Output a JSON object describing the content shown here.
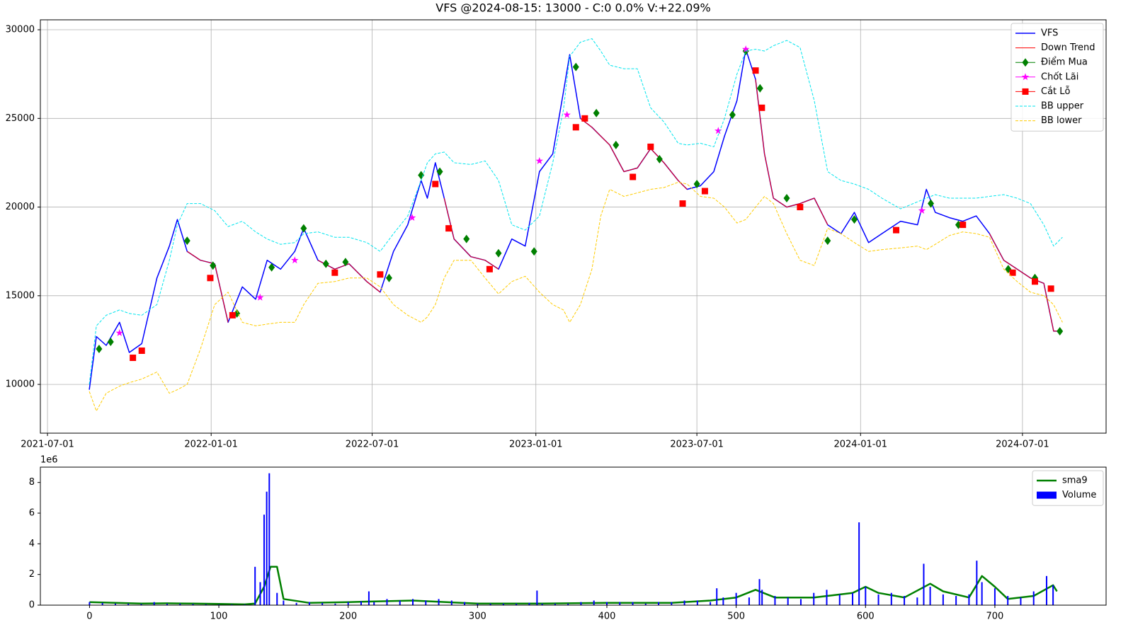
{
  "chart_data": [
    {
      "type": "line",
      "title": "VFS @2024-08-15: 13000 - C:0 0.0% V:+22.09%",
      "x": [
        "2021-08-17",
        "2021-08-25",
        "2021-09-05",
        "2021-09-20",
        "2021-10-01",
        "2021-10-15",
        "2021-11-01",
        "2021-11-15",
        "2021-11-24",
        "2021-12-05",
        "2021-12-20",
        "2022-01-05",
        "2022-01-20",
        "2022-02-05",
        "2022-02-20",
        "2022-03-05",
        "2022-03-20",
        "2022-04-05",
        "2022-04-15",
        "2022-05-01",
        "2022-05-20",
        "2022-06-05",
        "2022-06-25",
        "2022-07-10",
        "2022-07-25",
        "2022-08-10",
        "2022-08-25",
        "2022-09-01",
        "2022-09-10",
        "2022-09-20",
        "2022-10-01",
        "2022-10-20",
        "2022-11-05",
        "2022-11-20",
        "2022-12-05",
        "2022-12-20",
        "2023-01-05",
        "2023-01-20",
        "2023-02-01",
        "2023-02-08",
        "2023-02-20",
        "2023-03-05",
        "2023-03-15",
        "2023-03-25",
        "2023-04-10",
        "2023-04-25",
        "2023-05-10",
        "2023-05-25",
        "2023-06-10",
        "2023-06-20",
        "2023-07-05",
        "2023-07-20",
        "2023-08-01",
        "2023-08-15",
        "2023-08-25",
        "2023-09-05",
        "2023-09-15",
        "2023-09-25",
        "2023-10-10",
        "2023-10-25",
        "2023-11-10",
        "2023-11-25",
        "2023-12-10",
        "2023-12-25",
        "2024-01-10",
        "2024-01-25",
        "2024-02-15",
        "2024-03-05",
        "2024-03-15",
        "2024-03-25",
        "2024-04-10",
        "2024-04-25",
        "2024-05-10",
        "2024-05-25",
        "2024-06-10",
        "2024-06-25",
        "2024-07-10",
        "2024-07-25",
        "2024-08-05",
        "2024-08-15"
      ],
      "series": [
        {
          "name": "VFS",
          "kind": "line",
          "color": "#0000ff",
          "width": 1.5,
          "values": [
            9700,
            12700,
            12200,
            13500,
            11800,
            12300,
            16000,
            17800,
            19300,
            17500,
            17000,
            16800,
            13500,
            15500,
            14800,
            17000,
            16500,
            17500,
            18800,
            17000,
            16500,
            16800,
            15800,
            15200,
            17500,
            19000,
            21500,
            20500,
            22500,
            20500,
            18200,
            17200,
            17000,
            16500,
            18200,
            17800,
            22000,
            23000,
            26500,
            28600,
            25000,
            24500,
            24000,
            23500,
            22000,
            22200,
            23300,
            22500,
            21500,
            21000,
            21200,
            22000,
            24000,
            26000,
            28900,
            27200,
            23000,
            20500,
            20000,
            20200,
            20500,
            19000,
            18500,
            19700,
            18000,
            18500,
            19200,
            19000,
            21000,
            19700,
            19400,
            19200,
            19500,
            18500,
            17000,
            16500,
            16000,
            15700,
            13000,
            13000
          ]
        },
        {
          "name": "Down Trend",
          "kind": "line",
          "color": "#ff0000",
          "width": 1,
          "values": [
            null,
            null,
            null,
            null,
            null,
            null,
            null,
            null,
            null,
            17500,
            17000,
            16800,
            13500,
            null,
            null,
            null,
            null,
            null,
            null,
            17000,
            16500,
            16800,
            15800,
            15200,
            null,
            null,
            null,
            null,
            null,
            20500,
            18200,
            17200,
            17000,
            16500,
            null,
            null,
            null,
            null,
            null,
            null,
            25000,
            24500,
            24000,
            23500,
            22000,
            22200,
            23300,
            22500,
            21500,
            21000,
            null,
            null,
            null,
            null,
            null,
            27200,
            23000,
            20500,
            20000,
            20200,
            20500,
            19000,
            null,
            null,
            null,
            null,
            null,
            null,
            null,
            null,
            null,
            null,
            null,
            18500,
            17000,
            16500,
            16000,
            15700,
            13000,
            13000
          ]
        },
        {
          "name": "Điểm Mua",
          "kind": "scatter",
          "marker": "diamond",
          "color": "#008000",
          "x": [
            "2021-08-28",
            "2021-09-10",
            "2021-12-05",
            "2022-01-03",
            "2022-01-30",
            "2022-03-10",
            "2022-04-15",
            "2022-05-10",
            "2022-06-01",
            "2022-07-20",
            "2022-08-25",
            "2022-09-15",
            "2022-10-15",
            "2022-11-20",
            "2022-12-30",
            "2023-02-15",
            "2023-03-10",
            "2023-04-01",
            "2023-05-20",
            "2023-07-01",
            "2023-08-10",
            "2023-08-25",
            "2023-09-10",
            "2023-10-10",
            "2023-11-25",
            "2023-12-25",
            "2024-03-20",
            "2024-04-20",
            "2024-06-15",
            "2024-07-15",
            "2024-08-12"
          ],
          "values": [
            12000,
            12400,
            18100,
            16700,
            14000,
            16600,
            18800,
            16800,
            16900,
            16000,
            21800,
            22000,
            18200,
            17400,
            17500,
            27900,
            25300,
            23500,
            22700,
            21300,
            25200,
            28800,
            26700,
            20500,
            18100,
            19300,
            20200,
            19000,
            16500,
            16000,
            13000
          ]
        },
        {
          "name": "Chốt Lãi",
          "kind": "scatter",
          "marker": "star",
          "color": "#ff00ff",
          "x": [
            "2021-09-20",
            "2022-02-25",
            "2022-04-05",
            "2022-08-15",
            "2023-01-05",
            "2023-02-05",
            "2023-07-25",
            "2023-08-25",
            "2024-03-10"
          ],
          "values": [
            12900,
            14900,
            17000,
            19400,
            22600,
            25200,
            24300,
            28900,
            19800
          ]
        },
        {
          "name": "Cắt Lỗ",
          "kind": "scatter",
          "marker": "square",
          "color": "#ff0000",
          "x": [
            "2021-10-05",
            "2021-10-15",
            "2021-12-31",
            "2022-01-25",
            "2022-05-20",
            "2022-07-10",
            "2022-09-10",
            "2022-09-25",
            "2022-11-10",
            "2023-02-15",
            "2023-02-25",
            "2023-04-20",
            "2023-05-10",
            "2023-06-15",
            "2023-07-10",
            "2023-09-05",
            "2023-09-12",
            "2023-10-25",
            "2024-02-10",
            "2024-04-25",
            "2024-06-20",
            "2024-07-15",
            "2024-08-02"
          ],
          "values": [
            11500,
            11900,
            16000,
            13900,
            16300,
            16200,
            21300,
            18800,
            16500,
            24500,
            25000,
            21700,
            23400,
            20200,
            20900,
            27700,
            25600,
            20000,
            18700,
            19000,
            16300,
            15800,
            15400
          ]
        },
        {
          "name": "BB upper",
          "kind": "line",
          "dash": true,
          "color": "#00e5ee",
          "width": 1,
          "values": [
            10000,
            13300,
            13900,
            14200,
            14000,
            13900,
            14500,
            17000,
            19000,
            20200,
            20200,
            19800,
            18900,
            19200,
            18600,
            18200,
            17900,
            18000,
            18500,
            18600,
            18300,
            18300,
            18000,
            17500,
            18500,
            19500,
            21500,
            22500,
            23000,
            23100,
            22500,
            22400,
            22600,
            21500,
            19000,
            18700,
            19500,
            22500,
            25500,
            28500,
            29300,
            29500,
            28800,
            28000,
            27800,
            27800,
            25600,
            24800,
            23600,
            23500,
            23600,
            23400,
            25000,
            27500,
            28800,
            28900,
            28800,
            29100,
            29400,
            29000,
            26000,
            22000,
            21500,
            21300,
            21000,
            20500,
            19900,
            20300,
            20500,
            20700,
            20500,
            20500,
            20500,
            20600,
            20700,
            20500,
            20200,
            19000,
            17800,
            18300
          ]
        },
        {
          "name": "BB lower",
          "kind": "line",
          "dash": true,
          "color": "#ffcc00",
          "width": 1,
          "values": [
            9600,
            8500,
            9500,
            9900,
            10100,
            10300,
            10700,
            9500,
            9700,
            10000,
            12000,
            14500,
            15200,
            13500,
            13300,
            13400,
            13500,
            13500,
            14500,
            15700,
            15800,
            16000,
            16000,
            15500,
            14500,
            13900,
            13500,
            13800,
            14500,
            16000,
            17000,
            17000,
            16000,
            15100,
            15800,
            16100,
            15200,
            14500,
            14200,
            13500,
            14500,
            16500,
            19500,
            21000,
            20600,
            20800,
            21000,
            21100,
            21400,
            21300,
            20600,
            20500,
            20000,
            19100,
            19300,
            20000,
            20600,
            20200,
            18500,
            17000,
            16700,
            18800,
            18500,
            18000,
            17500,
            17600,
            17700,
            17800,
            17600,
            17900,
            18400,
            18600,
            18500,
            18300,
            16500,
            15800,
            15200,
            15000,
            14500,
            13500
          ]
        }
      ],
      "xlim": [
        "2021-06-23",
        "2024-10-03"
      ],
      "xticks": [
        "2021-07-01",
        "2022-01-01",
        "2022-07-01",
        "2023-01-01",
        "2023-07-01",
        "2024-01-01",
        "2024-07-01"
      ],
      "ylim": [
        7250,
        30560
      ],
      "yticks": [
        10000,
        15000,
        20000,
        25000,
        30000
      ],
      "grid": true,
      "legend": "upper right"
    },
    {
      "type": "bar",
      "y_offset_label": "1e6",
      "series": [
        {
          "name": "sma9",
          "kind": "line",
          "color": "#008000",
          "width": 2.5,
          "x": [
            0,
            20,
            40,
            60,
            80,
            100,
            120,
            128,
            135,
            140,
            145,
            150,
            170,
            200,
            250,
            300,
            350,
            400,
            450,
            480,
            500,
            515,
            530,
            560,
            590,
            600,
            610,
            630,
            650,
            660,
            680,
            690,
            700,
            710,
            730,
            745,
            748
          ],
          "values": [
            200000,
            150000,
            100000,
            120000,
            100000,
            80000,
            50000,
            100000,
            1200000,
            2500000,
            2500000,
            400000,
            150000,
            200000,
            300000,
            100000,
            100000,
            150000,
            150000,
            300000,
            500000,
            1000000,
            500000,
            500000,
            800000,
            1200000,
            800000,
            500000,
            1400000,
            900000,
            500000,
            1900000,
            1200000,
            400000,
            600000,
            1300000,
            900000
          ]
        },
        {
          "name": "Volume",
          "kind": "bar",
          "color": "#0000ff",
          "x": [
            0,
            10,
            20,
            30,
            40,
            50,
            60,
            70,
            80,
            90,
            100,
            110,
            120,
            128,
            132,
            135,
            137,
            139,
            145,
            150,
            160,
            170,
            180,
            190,
            200,
            210,
            216,
            220,
            230,
            240,
            250,
            260,
            270,
            280,
            290,
            300,
            310,
            320,
            330,
            340,
            346,
            350,
            360,
            370,
            380,
            390,
            400,
            410,
            420,
            430,
            440,
            450,
            460,
            470,
            480,
            485,
            490,
            500,
            510,
            518,
            520,
            530,
            540,
            550,
            560,
            570,
            580,
            590,
            595,
            600,
            610,
            620,
            630,
            640,
            645,
            650,
            660,
            670,
            680,
            686,
            690,
            700,
            710,
            720,
            730,
            740,
            745
          ],
          "values": [
            200000,
            150000,
            100000,
            100000,
            80000,
            200000,
            100000,
            100000,
            80000,
            60000,
            50000,
            50000,
            50000,
            2500000,
            1500000,
            5900000,
            7400000,
            8600000,
            800000,
            300000,
            150000,
            200000,
            150000,
            100000,
            200000,
            250000,
            900000,
            200000,
            400000,
            300000,
            400000,
            300000,
            400000,
            300000,
            200000,
            100000,
            100000,
            100000,
            100000,
            150000,
            950000,
            100000,
            100000,
            100000,
            200000,
            300000,
            200000,
            200000,
            200000,
            100000,
            200000,
            200000,
            300000,
            300000,
            200000,
            1100000,
            500000,
            800000,
            500000,
            1700000,
            1000000,
            600000,
            500000,
            400000,
            800000,
            1000000,
            700000,
            800000,
            5400000,
            1200000,
            700000,
            800000,
            600000,
            500000,
            2700000,
            1200000,
            700000,
            600000,
            700000,
            2900000,
            1500000,
            1100000,
            600000,
            500000,
            900000,
            1900000,
            1300000
          ]
        }
      ],
      "xlim": [
        -38,
        786
      ],
      "xticks": [
        0,
        100,
        200,
        300,
        400,
        500,
        600,
        700
      ],
      "ylim": [
        0,
        9000000
      ],
      "yticks": [
        0,
        {
          "value": 2000000,
          "label": "2"
        },
        {
          "value": 4000000,
          "label": "4"
        },
        {
          "value": 6000000,
          "label": "6"
        },
        {
          "value": 8000000,
          "label": "8"
        }
      ],
      "grid": false,
      "legend": "upper right"
    }
  ]
}
